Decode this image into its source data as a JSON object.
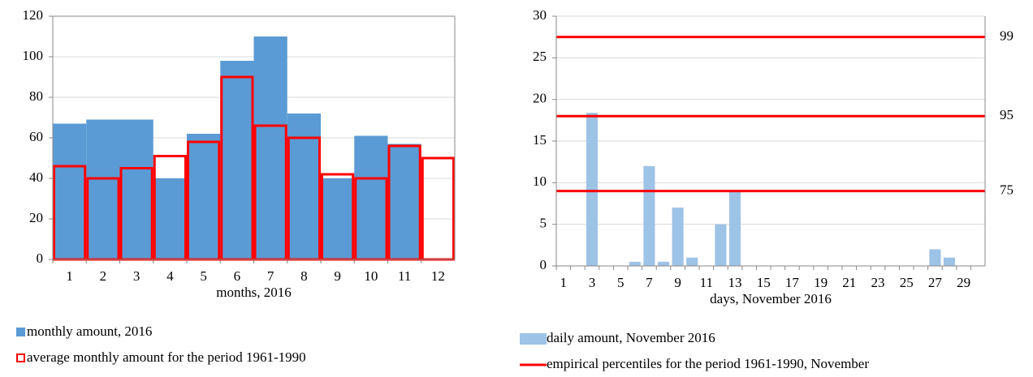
{
  "chart_data": [
    {
      "type": "bar",
      "x_label": "months, 2016",
      "categories": [
        "1",
        "2",
        "3",
        "4",
        "5",
        "6",
        "7",
        "8",
        "9",
        "10",
        "11",
        "12"
      ],
      "series": [
        {
          "name": "monthly amount, 2016",
          "color": "#5b9bd5",
          "values": [
            67,
            69,
            69,
            40,
            62,
            98,
            110,
            72,
            40,
            61,
            57,
            null
          ]
        },
        {
          "name": "average monthly amount for the period 1961-1990",
          "color": "#ff0000",
          "style": "outline",
          "values": [
            46,
            40,
            45,
            51,
            58,
            90,
            66,
            60,
            42,
            40,
            56,
            50
          ]
        }
      ],
      "ylim": [
        0,
        120
      ],
      "yticks": [
        0,
        20,
        40,
        60,
        80,
        100,
        120
      ],
      "grid": true
    },
    {
      "type": "bar",
      "x_label": "days, November 2016",
      "categories": [
        "1",
        null,
        "3",
        null,
        "5",
        null,
        "7",
        null,
        "9",
        null,
        "11",
        null,
        "13",
        null,
        "15",
        null,
        "17",
        null,
        "19",
        null,
        "21",
        null,
        "23",
        null,
        "25",
        null,
        "27",
        null,
        "29",
        null
      ],
      "series": [
        {
          "name": "daily amount, November 2016",
          "color": "#9dc3e6",
          "values": [
            0,
            0,
            18.4,
            0,
            0,
            0.5,
            12,
            0.5,
            7,
            1,
            0,
            5,
            9,
            0,
            0,
            0,
            0,
            0,
            0,
            0,
            0,
            0,
            0,
            0,
            0,
            0,
            2,
            1,
            0,
            0
          ]
        },
        {
          "name": "empirical percentiles for the period 1961-1990, November",
          "color": "#ff0000",
          "style": "hline",
          "lines": [
            {
              "value": 27.5,
              "label": "99"
            },
            {
              "value": 18,
              "label": "95"
            },
            {
              "value": 9,
              "label": "75"
            }
          ]
        }
      ],
      "ylim": [
        0,
        30
      ],
      "yticks": [
        0,
        5,
        10,
        15,
        20,
        25,
        30
      ],
      "grid": true
    }
  ]
}
